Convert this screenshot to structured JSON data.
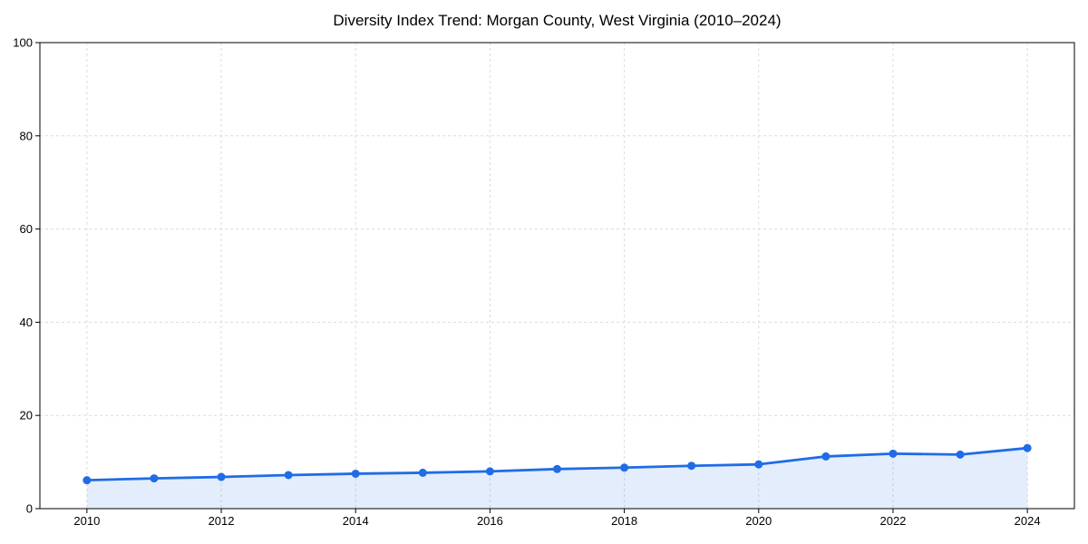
{
  "title": "Diversity Index Trend: Morgan County, West Virginia (2010–2024)",
  "chart_data": {
    "type": "line",
    "title": "Diversity Index Trend: Morgan County, West Virginia (2010–2024)",
    "x": [
      2010,
      2011,
      2012,
      2013,
      2014,
      2015,
      2016,
      2017,
      2018,
      2019,
      2020,
      2021,
      2022,
      2023,
      2024
    ],
    "series": [
      {
        "name": "Diversity Index",
        "values": [
          6.1,
          6.5,
          6.8,
          7.2,
          7.5,
          7.7,
          8.0,
          8.5,
          8.8,
          9.2,
          9.5,
          11.2,
          11.8,
          11.6,
          13.0
        ]
      }
    ],
    "xlabel": "",
    "ylabel": "",
    "xlim": [
      2009.3,
      2024.7
    ],
    "ylim": [
      0,
      100
    ],
    "xticks": [
      2010,
      2012,
      2014,
      2016,
      2018,
      2020,
      2022,
      2024
    ],
    "yticks": [
      0,
      20,
      40,
      60,
      80,
      100
    ],
    "grid": true,
    "grid_style": "dashed",
    "legend_position": "none",
    "marker": "circle",
    "line_color": "#1f6ce6",
    "fill_color": "rgba(31, 108, 230, 0.12)",
    "grid_color": "#dcdcdc",
    "axis_color": "#000000",
    "tick_text_color": "#000000",
    "background_color": "#ffffff"
  }
}
